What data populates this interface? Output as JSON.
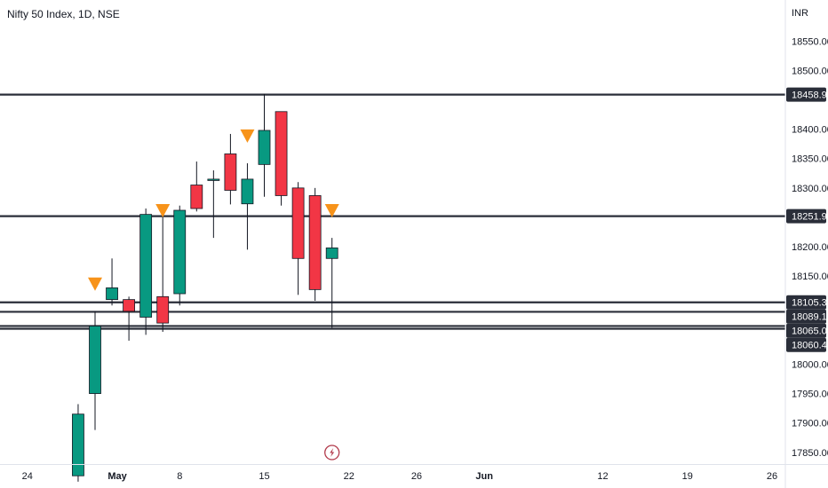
{
  "chart_data": {
    "type": "candlestick",
    "title": "Nifty 50 Index, 1D, NSE",
    "currency": "INR",
    "ylim": [
      17830,
      18620
    ],
    "y_ticks": [
      "18550.00",
      "18500.00",
      "18400.00",
      "18350.00",
      "18300.00",
      "18200.00",
      "18150.00",
      "18000.00",
      "17950.00",
      "17900.00",
      "17850.00"
    ],
    "x_ticks": [
      {
        "label": "24",
        "bold": false,
        "index": -4
      },
      {
        "label": "May",
        "bold": true,
        "index": 1
      },
      {
        "label": "8",
        "bold": false,
        "index": 5
      },
      {
        "label": "15",
        "bold": false,
        "index": 10
      },
      {
        "label": "22",
        "bold": false,
        "index": 15
      },
      {
        "label": "26",
        "bold": false,
        "index": 19
      },
      {
        "label": "Jun",
        "bold": true,
        "index": 23
      },
      {
        "label": "12",
        "bold": false,
        "index": 30
      },
      {
        "label": "19",
        "bold": false,
        "index": 35
      },
      {
        "label": "26",
        "bold": false,
        "index": 40
      }
    ],
    "candles": [
      {
        "index": -1,
        "open": 17810,
        "high": 17932,
        "low": 17800,
        "close": 17915
      },
      {
        "index": 0,
        "open": 17950,
        "high": 18090,
        "low": 17888,
        "close": 18065
      },
      {
        "index": 1,
        "open": 18110,
        "high": 18180,
        "low": 18100,
        "close": 18130
      },
      {
        "index": 2,
        "open": 18110,
        "high": 18115,
        "low": 18040,
        "close": 18090
      },
      {
        "index": 3,
        "open": 18080,
        "high": 18265,
        "low": 18050,
        "close": 18255
      },
      {
        "index": 4,
        "open": 18115,
        "high": 18258,
        "low": 18055,
        "close": 18070
      },
      {
        "index": 5,
        "open": 18120,
        "high": 18270,
        "low": 18100,
        "close": 18262
      },
      {
        "index": 6,
        "open": 18305,
        "high": 18345,
        "low": 18260,
        "close": 18265
      },
      {
        "index": 7,
        "open": 18315,
        "high": 18330,
        "low": 18215,
        "close": 18315
      },
      {
        "index": 8,
        "open": 18358,
        "high": 18392,
        "low": 18272,
        "close": 18296
      },
      {
        "index": 9,
        "open": 18273,
        "high": 18342,
        "low": 18195,
        "close": 18315
      },
      {
        "index": 10,
        "open": 18340,
        "high": 18460,
        "low": 18285,
        "close": 18398
      },
      {
        "index": 11,
        "open": 18430,
        "high": 18430,
        "low": 18270,
        "close": 18287
      },
      {
        "index": 12,
        "open": 18300,
        "high": 18310,
        "low": 18118,
        "close": 18180
      },
      {
        "index": 13,
        "open": 18287,
        "high": 18300,
        "low": 18108,
        "close": 18127
      },
      {
        "index": 14,
        "open": 18180,
        "high": 18215,
        "low": 18062,
        "close": 18198
      }
    ],
    "markers": [
      {
        "index": 0,
        "price": 18128
      },
      {
        "index": 4,
        "price": 18253
      },
      {
        "index": 9,
        "price": 18380
      },
      {
        "index": 14,
        "price": 18253
      }
    ],
    "levels": [
      {
        "price": 18458.9,
        "label": "18458.90"
      },
      {
        "price": 18251.95,
        "label": "18251.95"
      },
      {
        "price": 18105.3,
        "label": "18105.30"
      },
      {
        "price": 18089.15,
        "label": "18089.15"
      },
      {
        "price": 18065.0,
        "label": "18065.00"
      },
      {
        "price": 18060.4,
        "label": "18060.40"
      }
    ],
    "event_marker": {
      "index": 14,
      "icon": "lightning-icon"
    },
    "colors": {
      "up": "#089981",
      "down": "#f23645",
      "wick": "#131722",
      "level": "#2a2e39",
      "marker": "#f7931a",
      "label_bg": "#2a2e39",
      "label_text": "#ffffff",
      "event": "#b23a4b"
    }
  }
}
